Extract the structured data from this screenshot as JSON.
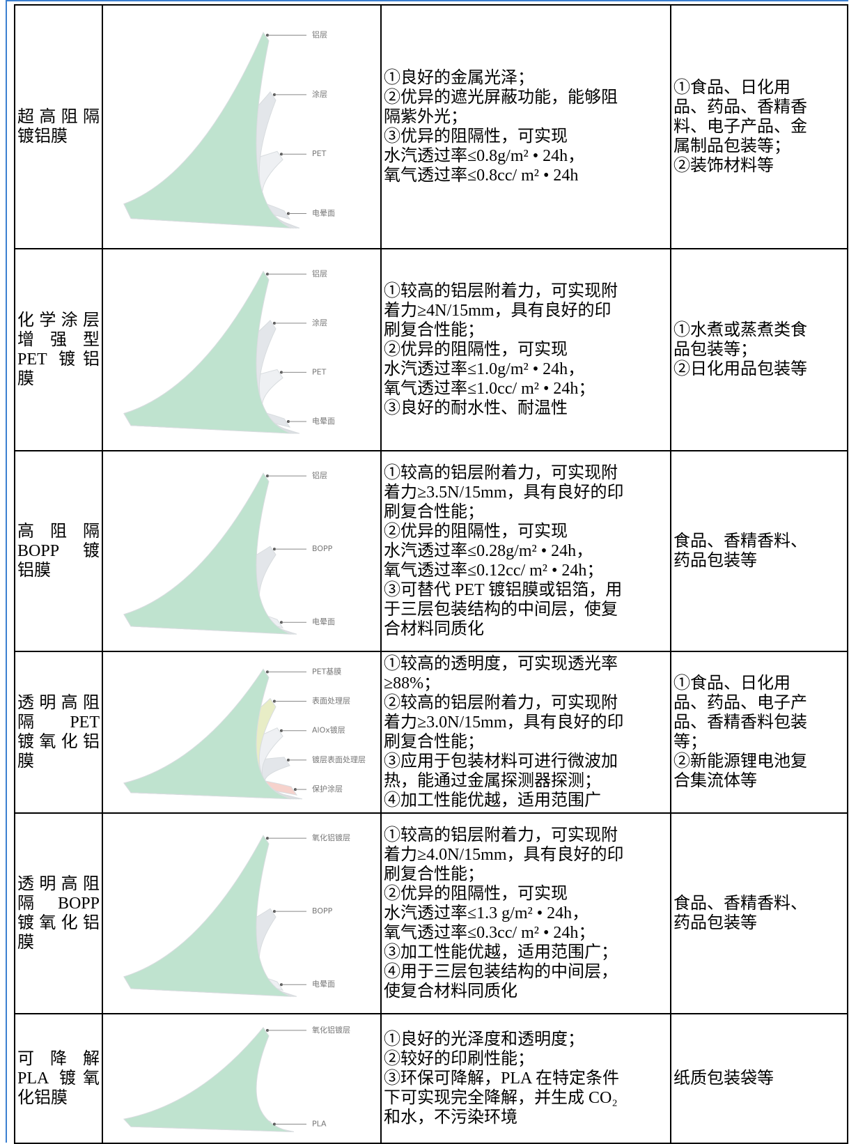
{
  "rows": [
    {
      "name": [
        "超高阻隔",
        "镀铝膜"
      ],
      "layers": [
        "铝层",
        "涂层",
        "PET",
        "电晕面"
      ],
      "properties": [
        "①良好的金属光泽；",
        "②优异的遮光屏蔽功能，能够阻",
        "隔紫外光；",
        "③优异的阻隔性，可实现",
        "水汽透过率≤0.8g/m² • 24h，",
        "氧气透过率≤0.8cc/ m² • 24h"
      ],
      "applications": [
        "①食品、日化用",
        "品、药品、香精香",
        "料、电子产品、金",
        "属制品包装等；",
        "②装饰材料等"
      ]
    },
    {
      "name": [
        "化学涂层",
        "增强型",
        "PET 镀铝",
        "膜"
      ],
      "layers": [
        "铝层",
        "涂层",
        "PET",
        "电晕面"
      ],
      "properties": [
        "①较高的铝层附着力，可实现附",
        "着力≥4N/15mm，具有良好的印",
        "刷复合性能；",
        "②优异的阻隔性，可实现",
        "水汽透过率≤1.0g/m² • 24h，",
        "氧气透过率≤1.0cc/ m² • 24h；",
        "③良好的耐水性、耐温性"
      ],
      "applications": [
        "①水煮或蒸煮类食",
        "品包装等；",
        "②日化用品包装等"
      ]
    },
    {
      "name": [
        "高阻隔",
        "BOPP 镀",
        "铝膜"
      ],
      "layers": [
        "铝层",
        "BOPP",
        "电晕面"
      ],
      "properties": [
        "①较高的铝层附着力，可实现附",
        "着力≥3.5N/15mm，具有良好的印",
        "刷复合性能；",
        "②优异的阻隔性，可实现",
        "水汽透过率≤0.28g/m² • 24h，",
        "氧气透过率≤0.12cc/ m² • 24h；",
        "③可替代 PET 镀铝膜或铝箔，用",
        "于三层包装结构的中间层，使复",
        "合材料同质化"
      ],
      "applications": [
        "食品、香精香料、",
        "药品包装等"
      ]
    },
    {
      "name": [
        "透明高阻",
        "隔 PET",
        "镀氧化铝",
        "膜"
      ],
      "layers": [
        "PET基膜",
        "表面处理层",
        "AlOx镀层",
        "镀层表面处理层",
        "保护涂层"
      ],
      "properties": [
        "①较高的透明度，可实现透光率",
        "≥88%；",
        "②较高的铝层附着力，可实现附",
        "着力≥3.0N/15mm，具有良好的印",
        "刷复合性能；",
        "③应用于包装材料可进行微波加",
        "热，能通过金属探测器探测；",
        "④加工性能优越，适用范围广"
      ],
      "applications": [
        "①食品、日化用",
        "品、药品、电子产",
        "品、香精香料包装",
        "等；",
        "②新能源锂电池复",
        "合集流体等"
      ]
    },
    {
      "name": [
        "透明高阻",
        "隔 BOPP",
        "镀氧化铝",
        "膜"
      ],
      "layers": [
        "氧化铝镀层",
        "BOPP",
        "电晕面"
      ],
      "properties": [
        "①较高的铝层附着力，可实现附",
        "着力≥4.0N/15mm，具有良好的印",
        "刷复合性能；",
        "②优异的阻隔性，可实现",
        "水汽透过率≤1.3 g/m² • 24h，",
        "氧气透过率≤0.3cc/ m² • 24h；",
        "③加工性能优越，适用范围广；",
        "④用于三层包装结构的中间层，",
        "使复合材料同质化"
      ],
      "applications": [
        "食品、香精香料、",
        "药品包装等"
      ]
    },
    {
      "name": [
        "可降解",
        "PLA 镀氧",
        "化铝膜"
      ],
      "layers": [
        "氧化铝镀层",
        "PLA"
      ],
      "properties": [
        "①良好的光泽度和透明度；",
        "②较好的印刷性能；",
        "③环保可降解，PLA 在特定条件",
        "下可实现完全降解，并生成 CO₂",
        "和水，不污染环境"
      ],
      "applications": [
        "纸质包装袋等"
      ]
    }
  ]
}
